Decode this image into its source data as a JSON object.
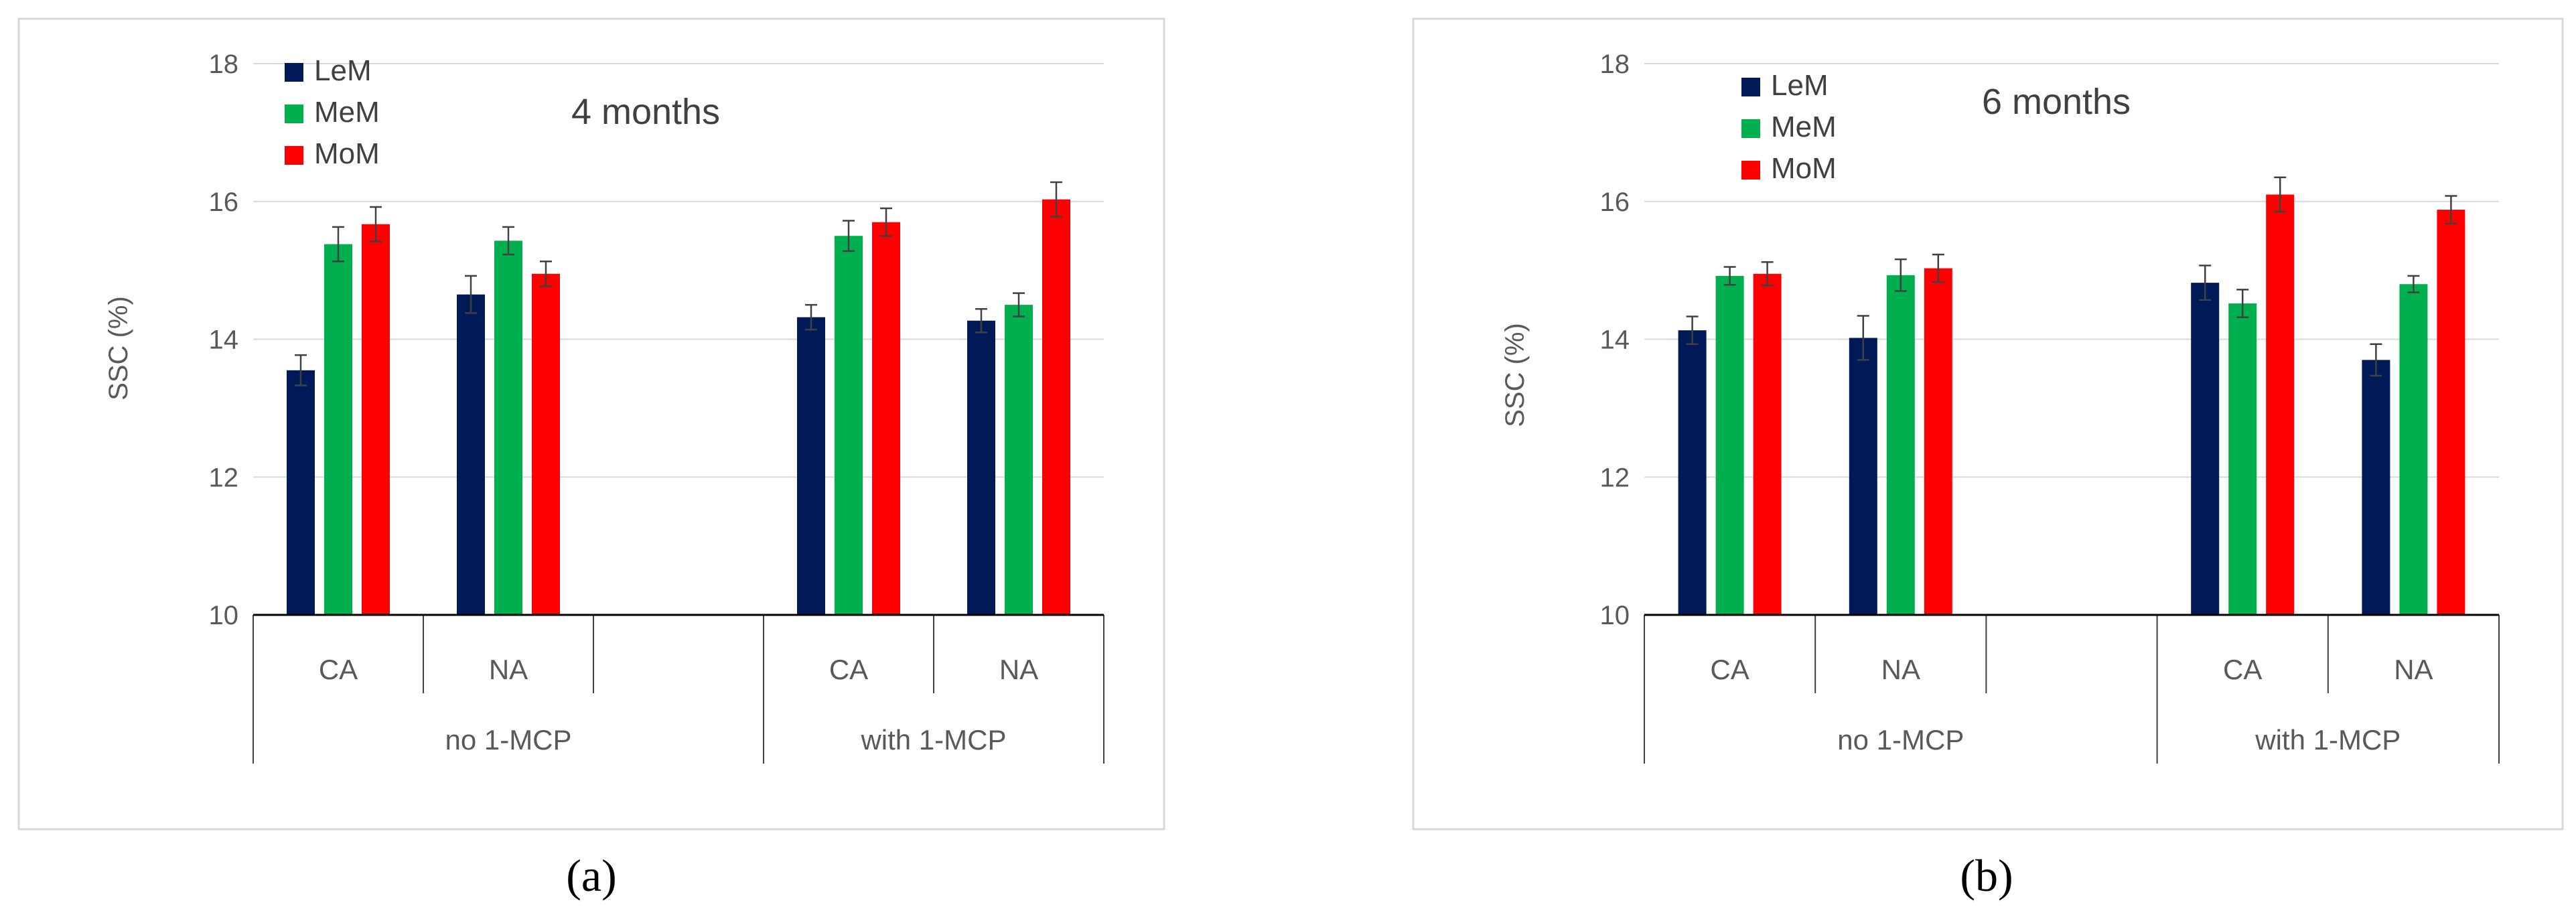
{
  "chart_data": [
    {
      "type": "bar",
      "panel_label": "(a)",
      "title": "4 months",
      "ylabel": "SSC (%)",
      "xlabel": "",
      "ylim": [
        10,
        18
      ],
      "yticks": [
        10,
        12,
        14,
        16,
        18
      ],
      "groups": [
        {
          "label": "no 1-MCP",
          "subcategories": [
            "CA",
            "NA",
            ""
          ]
        },
        {
          "label": "with 1-MCP",
          "subcategories": [
            "CA",
            "NA"
          ]
        }
      ],
      "categories": [
        "CA",
        "NA",
        "",
        "CA",
        "NA"
      ],
      "series": [
        {
          "name": "LeM",
          "color": "#001a57",
          "values": [
            13.55,
            14.65,
            null,
            14.32,
            14.27
          ],
          "errors": [
            0.22,
            0.27,
            null,
            0.18,
            0.17
          ]
        },
        {
          "name": "MeM",
          "color": "#00b04f",
          "values": [
            15.38,
            15.43,
            null,
            15.5,
            14.5
          ],
          "errors": [
            0.25,
            0.2,
            null,
            0.22,
            0.17
          ]
        },
        {
          "name": "MoM",
          "color": "#ff0000",
          "values": [
            15.67,
            14.95,
            null,
            15.7,
            16.03
          ],
          "errors": [
            0.25,
            0.18,
            null,
            0.2,
            0.25
          ]
        }
      ],
      "legend_position": "top-left"
    },
    {
      "type": "bar",
      "panel_label": "(b)",
      "title": "6 months",
      "ylabel": "SSC (%)",
      "xlabel": "",
      "ylim": [
        10,
        18
      ],
      "yticks": [
        10,
        12,
        14,
        16,
        18
      ],
      "groups": [
        {
          "label": "no 1-MCP",
          "subcategories": [
            "CA",
            "NA",
            ""
          ]
        },
        {
          "label": "with 1-MCP",
          "subcategories": [
            "CA",
            "NA"
          ]
        }
      ],
      "categories": [
        "CA",
        "NA",
        "",
        "CA",
        "NA"
      ],
      "series": [
        {
          "name": "LeM",
          "color": "#001a57",
          "values": [
            14.13,
            14.02,
            null,
            14.82,
            13.7
          ],
          "errors": [
            0.2,
            0.32,
            null,
            0.25,
            0.23
          ]
        },
        {
          "name": "MeM",
          "color": "#00b04f",
          "values": [
            14.92,
            14.93,
            null,
            14.52,
            14.8
          ],
          "errors": [
            0.13,
            0.23,
            null,
            0.2,
            0.12
          ]
        },
        {
          "name": "MoM",
          "color": "#ff0000",
          "values": [
            14.95,
            15.03,
            null,
            16.1,
            15.88
          ],
          "errors": [
            0.17,
            0.2,
            null,
            0.25,
            0.2
          ]
        }
      ],
      "legend_position": "top-left"
    }
  ]
}
